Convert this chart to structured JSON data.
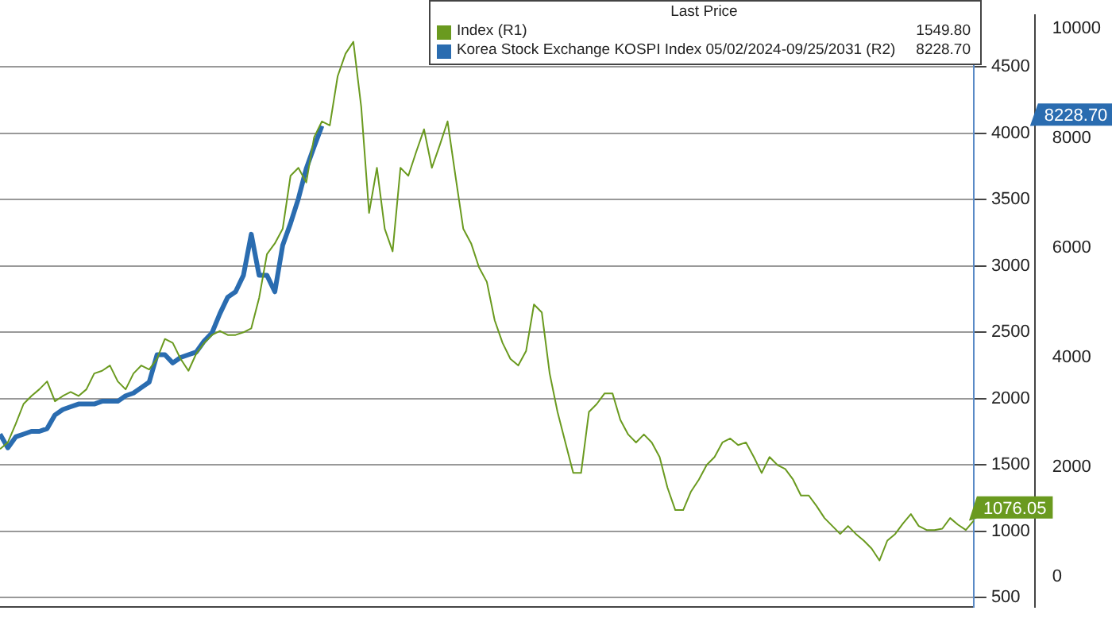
{
  "chart_data": {
    "type": "line",
    "legend_title": "Last Price",
    "legend": "top right",
    "grid": "y",
    "tick_labels": "y",
    "marker": "none",
    "line_style": "solid",
    "categories": [
      null,
      null,
      null,
      null,
      null,
      null,
      null,
      null,
      null,
      null,
      null,
      null,
      null,
      null,
      null,
      null,
      null,
      null,
      null,
      null,
      null,
      null,
      null,
      null,
      null,
      null,
      null,
      null,
      null,
      null,
      null,
      null,
      null,
      null,
      null,
      null,
      null,
      null,
      null,
      null,
      null,
      null,
      null,
      null,
      null,
      null,
      null,
      null,
      null,
      null,
      null,
      null,
      null,
      null,
      null,
      null,
      null,
      null,
      null,
      null,
      null,
      null,
      null,
      null,
      null,
      null,
      null,
      null,
      null,
      null,
      null,
      null,
      null,
      null,
      null,
      null,
      null,
      null,
      null,
      null,
      null,
      null,
      null,
      null,
      null,
      null,
      null,
      null,
      null,
      null,
      null,
      null,
      null,
      null,
      null,
      null,
      null,
      null,
      null,
      null,
      null,
      null,
      null,
      null,
      null,
      null,
      null,
      null,
      null,
      null,
      null,
      null,
      null,
      null,
      null,
      null,
      null,
      null,
      null,
      null,
      null,
      null,
      null,
      null,
      null
    ],
    "series": [
      {
        "name": "Index (R1)",
        "color": "#6a9a1f",
        "values": [
          1620,
          1670,
          1810,
          1960,
          2020,
          2070,
          2130,
          1980,
          2020,
          2050,
          2020,
          2070,
          2190,
          2210,
          2250,
          2130,
          2070,
          2190,
          2250,
          2220,
          2300,
          2450,
          2420,
          2300,
          2210,
          2340,
          2420,
          2480,
          2510,
          2480,
          2480,
          2500,
          2530,
          2760,
          3090,
          3170,
          3280,
          3680,
          3740,
          3630,
          3970,
          4090,
          4060,
          4430,
          4600,
          4690,
          4200,
          3400,
          3740,
          3280,
          3110,
          3740,
          3680,
          3860,
          4030,
          3740,
          3910,
          4090,
          3680,
          3280,
          3170,
          2990,
          2880,
          2590,
          2420,
          2300,
          2250,
          2360,
          2710,
          2650,
          2190,
          1900,
          1670,
          1440,
          1440,
          1900,
          1960,
          2040,
          2040,
          1840,
          1730,
          1670,
          1730,
          1670,
          1560,
          1330,
          1160,
          1160,
          1300,
          1390,
          1500,
          1560,
          1670,
          1700,
          1650,
          1670,
          1560,
          1440,
          1560,
          1500,
          1470,
          1390,
          1270,
          1270,
          1190,
          1100,
          1040,
          980,
          1040,
          980,
          930,
          870,
          780,
          930,
          980,
          1060,
          1130,
          1040,
          1010,
          1010,
          1020,
          1100,
          1050,
          1010,
          1080
        ]
      },
      {
        "name": "Korea Stock Exchange KOSPI Index 05/02/2024-09/25/2031 (R2)",
        "color": "#2a6cb0",
        "axis": "y2",
        "values": [
          2600,
          2350,
          2550,
          2600,
          2650,
          2650,
          2700,
          2950,
          3050,
          3100,
          3150,
          3150,
          3150,
          3200,
          3200,
          3200,
          3300,
          3350,
          3450,
          3550,
          4050,
          4050,
          3900,
          4000,
          4050,
          4100,
          4300,
          4450,
          4800,
          5100,
          5200,
          5500,
          6250,
          5500,
          5500,
          5200,
          6050,
          6450,
          6900,
          7450,
          7850,
          8228.7,
          null,
          null,
          null,
          null,
          null,
          null,
          null,
          null,
          null,
          null,
          null,
          null,
          null,
          null,
          null,
          null,
          null,
          null,
          null,
          null,
          null,
          null,
          null,
          null,
          null,
          null,
          null,
          null,
          null,
          null,
          null,
          null,
          null,
          null,
          null,
          null,
          null,
          null,
          null,
          null,
          null,
          null,
          null,
          null,
          null,
          null,
          null,
          null,
          null,
          null,
          null,
          null,
          null,
          null,
          null,
          null,
          null,
          null,
          null,
          null,
          null,
          null,
          null,
          null,
          null,
          null,
          null,
          null,
          null,
          null,
          null,
          null,
          null,
          null,
          null,
          null,
          null,
          null,
          null,
          null,
          null,
          null,
          null
        ]
      }
    ],
    "ylim": [
      430,
      4890
    ],
    "yticks": [
      500,
      1000,
      1500,
      2000,
      2500,
      3000,
      3500,
      4000,
      4500
    ],
    "y2lim": [
      -556,
      10250
    ],
    "y2ticks": [
      0,
      2000,
      4000,
      6000,
      8000,
      10000
    ],
    "annotations": [
      "1549.80",
      "8228.70",
      "1076.05",
      "8228.70"
    ]
  }
}
